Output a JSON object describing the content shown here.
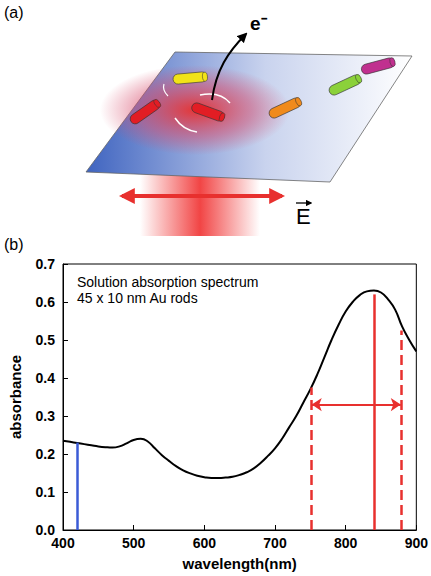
{
  "diagram": {
    "label": "(a)",
    "electron_label": "e⁻",
    "field_label": "E"
  },
  "chart_data": {
    "type": "line",
    "panel_label": "(b)",
    "title": "Solution absorption spectrum",
    "subtitle": "45 x 10 nm Au rods",
    "x_label": "wavelength(nm)",
    "y_label": "absorbance",
    "color": "#000000",
    "x": [
      400,
      410,
      420,
      430,
      440,
      450,
      460,
      470,
      480,
      490,
      500,
      510,
      520,
      530,
      540,
      550,
      560,
      570,
      580,
      590,
      600,
      610,
      620,
      630,
      640,
      650,
      660,
      670,
      680,
      690,
      700,
      710,
      720,
      730,
      740,
      750,
      760,
      770,
      780,
      790,
      800,
      810,
      820,
      830,
      840,
      850,
      860,
      870,
      880,
      890,
      900
    ],
    "values": [
      0.235,
      0.232,
      0.229,
      0.226,
      0.223,
      0.22,
      0.218,
      0.217,
      0.22,
      0.228,
      0.237,
      0.24,
      0.233,
      0.215,
      0.197,
      0.182,
      0.168,
      0.157,
      0.149,
      0.143,
      0.139,
      0.137,
      0.137,
      0.138,
      0.14,
      0.145,
      0.152,
      0.162,
      0.177,
      0.195,
      0.215,
      0.24,
      0.27,
      0.3,
      0.335,
      0.37,
      0.41,
      0.455,
      0.5,
      0.54,
      0.575,
      0.6,
      0.618,
      0.628,
      0.63,
      0.625,
      0.607,
      0.58,
      0.535,
      0.5,
      0.47
    ],
    "xlim": [
      400,
      900
    ],
    "xticks": [
      400,
      500,
      600,
      700,
      800,
      900
    ],
    "ylim": [
      0,
      0.7
    ],
    "yticks": [
      {
        "value": 0,
        "label": "0.0"
      },
      0.1,
      0.2,
      0.3,
      0.4,
      0.5,
      0.6,
      0.7
    ],
    "grid": false,
    "markers": [
      {
        "x": 420,
        "y": 0.23,
        "color": "#3b5bd6",
        "line_style": "solid"
      },
      {
        "x": 752,
        "y": 0.375,
        "color": "#e8302e",
        "line_style": "dashed"
      },
      {
        "x": 840,
        "y": 0.62,
        "color": "#e8302e",
        "line_style": "solid"
      },
      {
        "x": 878,
        "y": 0.525,
        "color": "#e8302e",
        "line_style": "dashed"
      }
    ],
    "range_arrow": {
      "from": 752,
      "to": 878,
      "y": 0.33,
      "color": "#e8302e"
    }
  }
}
